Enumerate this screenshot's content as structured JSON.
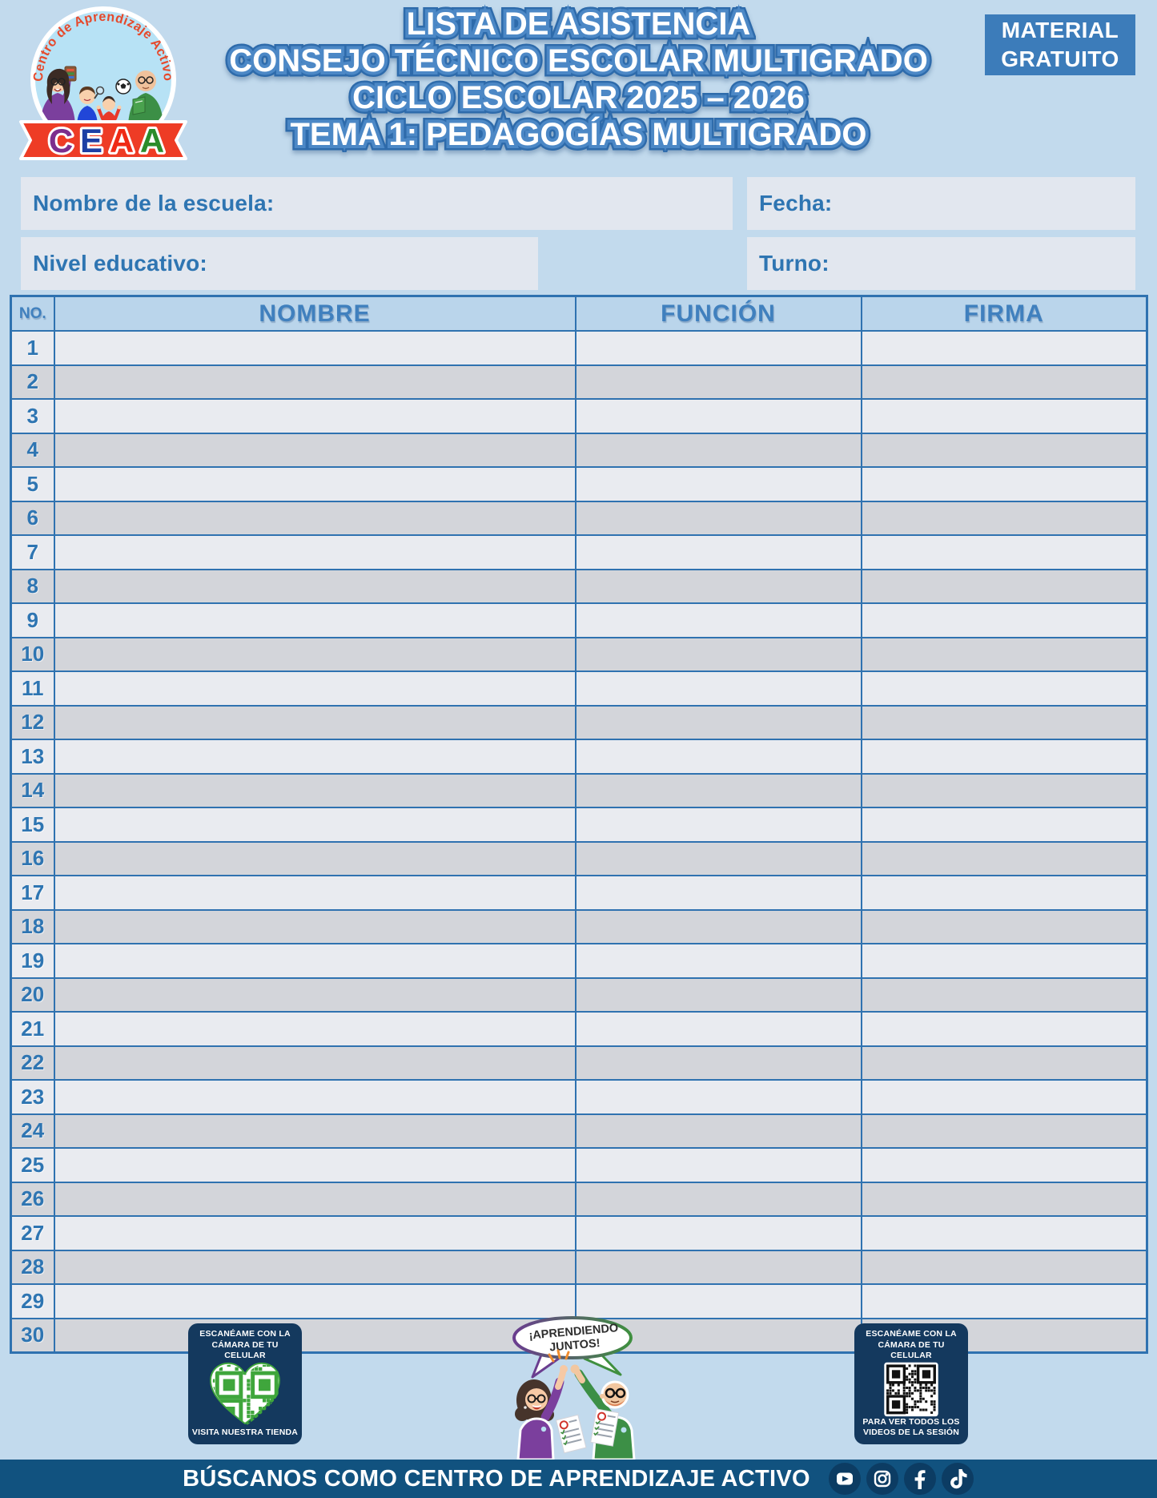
{
  "header": {
    "title_lines": [
      "LISTA DE ASISTENCIA",
      "CONSEJO TÉCNICO ESCOLAR MULTIGRADO",
      "CICLO ESCOLAR 2025 – 2026",
      "TEMA 1: PEDAGOGÍAS MULTIGRADO"
    ],
    "badge_line1": "MATERIAL",
    "badge_line2": "GRATUITO"
  },
  "logo": {
    "arc_text": "Centro de Aprendizaje Activo",
    "letters": [
      "C",
      "E",
      "A",
      "A"
    ]
  },
  "form": {
    "school_label": "Nombre de la escuela:",
    "school_value": "",
    "date_label": "Fecha:",
    "date_value": "",
    "level_label": "Nivel educativo:",
    "level_value": "",
    "shift_label": "Turno:",
    "shift_value": ""
  },
  "table": {
    "headers": [
      "NO.",
      "NOMBRE",
      "FUNCIÓN",
      "FIRMA"
    ],
    "rows": [
      [
        "1",
        "",
        "",
        ""
      ],
      [
        "2",
        "",
        "",
        ""
      ],
      [
        "3",
        "",
        "",
        ""
      ],
      [
        "4",
        "",
        "",
        ""
      ],
      [
        "5",
        "",
        "",
        ""
      ],
      [
        "6",
        "",
        "",
        ""
      ],
      [
        "7",
        "",
        "",
        ""
      ],
      [
        "8",
        "",
        "",
        ""
      ],
      [
        "9",
        "",
        "",
        ""
      ],
      [
        "10",
        "",
        "",
        ""
      ],
      [
        "11",
        "",
        "",
        ""
      ],
      [
        "12",
        "",
        "",
        ""
      ],
      [
        "13",
        "",
        "",
        ""
      ],
      [
        "14",
        "",
        "",
        ""
      ],
      [
        "15",
        "",
        "",
        ""
      ],
      [
        "16",
        "",
        "",
        ""
      ],
      [
        "17",
        "",
        "",
        ""
      ],
      [
        "18",
        "",
        "",
        ""
      ],
      [
        "19",
        "",
        "",
        ""
      ],
      [
        "20",
        "",
        "",
        ""
      ],
      [
        "21",
        "",
        "",
        ""
      ],
      [
        "22",
        "",
        "",
        ""
      ],
      [
        "23",
        "",
        "",
        ""
      ],
      [
        "24",
        "",
        "",
        ""
      ],
      [
        "25",
        "",
        "",
        ""
      ],
      [
        "26",
        "",
        "",
        ""
      ],
      [
        "27",
        "",
        "",
        ""
      ],
      [
        "28",
        "",
        "",
        ""
      ],
      [
        "29",
        "",
        "",
        ""
      ],
      [
        "30",
        "",
        "",
        ""
      ]
    ]
  },
  "footer": {
    "left_card": {
      "top_line1": "ESCANÉAME CON LA",
      "top_line2": "CÁMARA DE TU CELULAR",
      "bottom_line1": "VISITA NUESTRA TIENDA"
    },
    "right_card": {
      "top_line1": "ESCANÉAME CON LA",
      "top_line2": "CÁMARA DE TU CELULAR",
      "bottom_line1": "PARA VER TODOS LOS",
      "bottom_line2": "VIDEOS DE LA SESIÓN"
    },
    "speech_bubble": {
      "line1": "¡APRENDIENDO",
      "line2": "JUNTOS!"
    }
  },
  "bottom_bar": {
    "text": "BÚSCANOS COMO CENTRO DE APRENDIZAJE ACTIVO",
    "social_icons": [
      "youtube",
      "instagram",
      "facebook",
      "tiktok"
    ]
  },
  "colors": {
    "page_bg": "#c2daed",
    "accent_blue": "#3c7cba",
    "label_blue": "#2e75b2",
    "table_border": "#2f72b0",
    "bar_navy": "#11527f",
    "card_navy": "#14395e",
    "qr_green": "#3fa63c",
    "ribbon_red": "#ee3c25"
  }
}
